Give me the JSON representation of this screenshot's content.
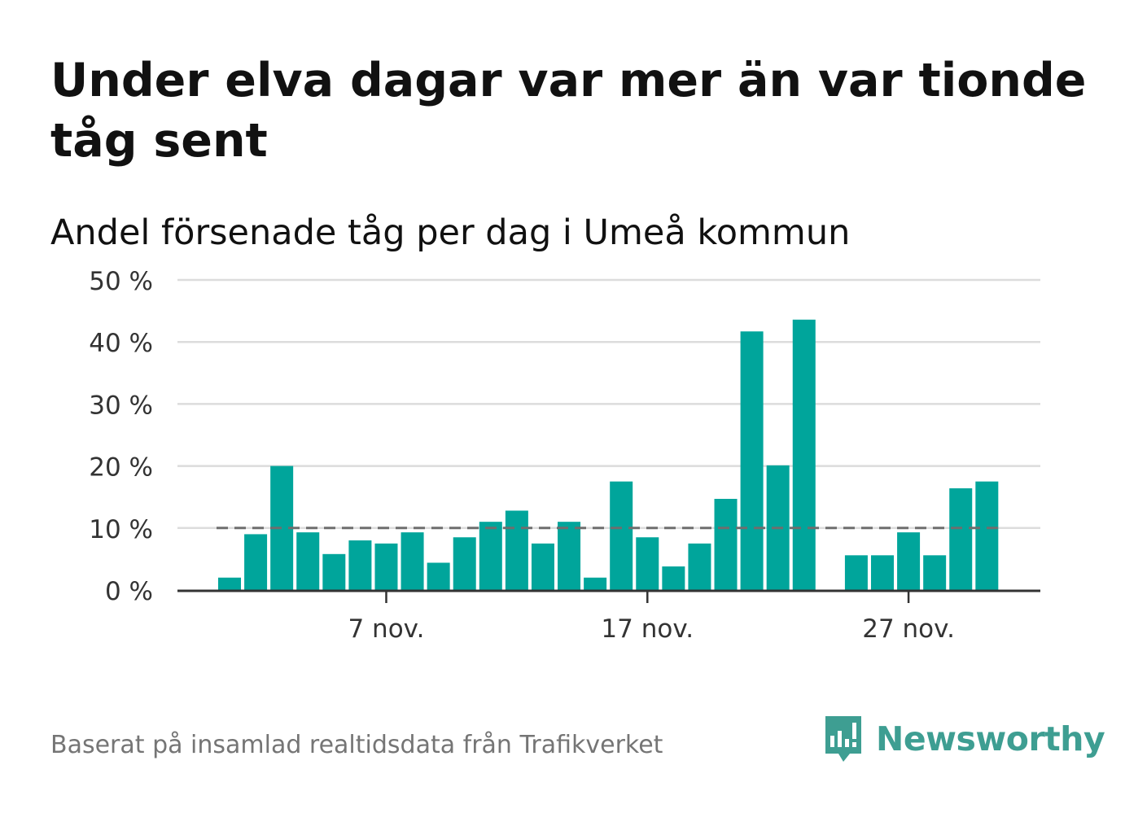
{
  "header": {
    "title": "Under elva dagar var mer än var tionde tåg sent",
    "subtitle": "Andel försenade tåg per dag i Umeå kommun"
  },
  "chart_data": {
    "type": "bar",
    "x": [
      "1 nov.",
      "2 nov.",
      "3 nov.",
      "4 nov.",
      "5 nov.",
      "6 nov.",
      "7 nov.",
      "8 nov.",
      "9 nov.",
      "10 nov.",
      "11 nov.",
      "12 nov.",
      "13 nov.",
      "14 nov.",
      "15 nov.",
      "16 nov.",
      "17 nov.",
      "18 nov.",
      "19 nov.",
      "20 nov.",
      "21 nov.",
      "22 nov.",
      "23 nov.",
      "24 nov.",
      "25 nov.",
      "26 nov.",
      "27 nov.",
      "28 nov.",
      "29 nov.",
      "30 nov."
    ],
    "values": [
      2,
      9,
      20,
      9.3,
      5.8,
      8,
      7.5,
      9.3,
      4.4,
      8.5,
      11,
      12.8,
      7.5,
      11,
      2,
      17.5,
      8.5,
      3.8,
      7.5,
      14.7,
      41.7,
      20.1,
      43.6,
      null,
      5.6,
      5.6,
      9.3,
      5.6,
      16.4,
      17.5
    ],
    "reference_line": {
      "value": 10,
      "style": "dashed"
    },
    "x_ticks": [
      "7 nov.",
      "17 nov.",
      "27 nov."
    ],
    "y_ticks": [
      "0 %",
      "10 %",
      "20 %",
      "30 %",
      "40 %",
      "50 %"
    ],
    "ylim": [
      0,
      50
    ],
    "grid": true,
    "bar_color": "#00a59b",
    "reference_color": "#6e6e6e"
  },
  "footer": {
    "source": "Baserat på insamlad realtidsdata från Trafikverket",
    "brand": "Newsworthy",
    "brand_icon": "newsworthy-chart-bubble-icon",
    "brand_color": "#3e9e92"
  }
}
